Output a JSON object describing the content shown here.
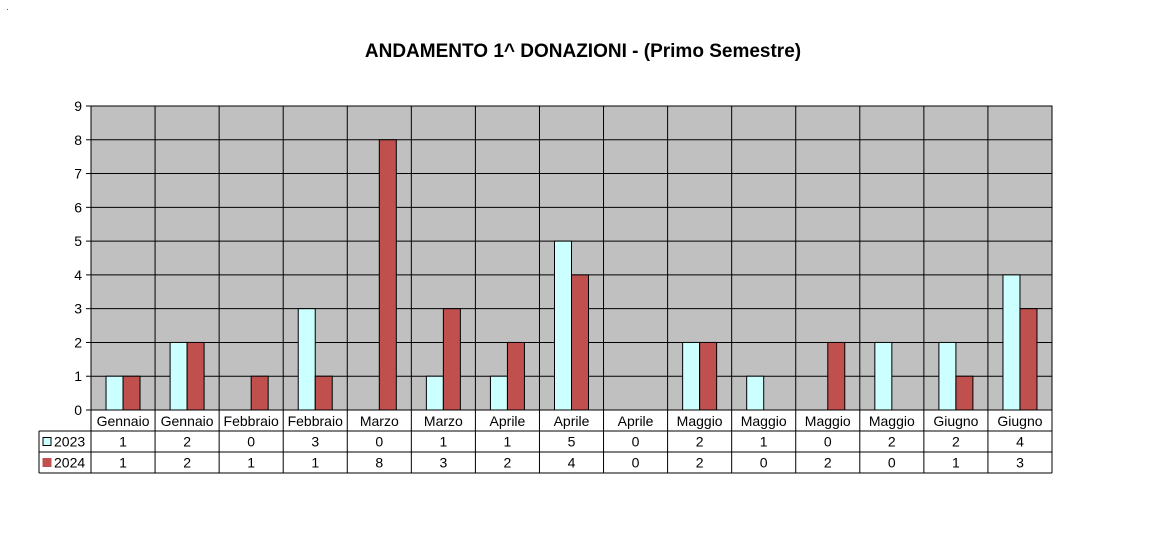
{
  "corner_mark": "·",
  "chart_data": {
    "type": "bar",
    "title": "ANDAMENTO 1^ DONAZIONI  -  (Primo Semestre)",
    "categories": [
      "Gennaio",
      "Gennaio",
      "Febbraio",
      "Febbraio",
      "Marzo",
      "Marzo",
      "Aprile",
      "Aprile",
      "Aprile",
      "Maggio",
      "Maggio",
      "Maggio",
      "Maggio",
      "Giugno",
      "Giugno"
    ],
    "series": [
      {
        "name": "2023",
        "color": "#ccffff",
        "values": [
          1,
          2,
          0,
          3,
          0,
          1,
          1,
          5,
          0,
          2,
          1,
          0,
          2,
          2,
          4
        ]
      },
      {
        "name": "2024",
        "color": "#c0504d",
        "values": [
          1,
          2,
          1,
          1,
          8,
          3,
          2,
          4,
          0,
          2,
          0,
          2,
          0,
          1,
          3
        ]
      }
    ],
    "ylim": [
      0,
      9
    ],
    "yticks": [
      "0",
      "1",
      "2",
      "3",
      "4",
      "5",
      "6",
      "7",
      "8",
      "9"
    ],
    "grid": true,
    "plot_background": "#c0c0c0",
    "data_table": true
  }
}
